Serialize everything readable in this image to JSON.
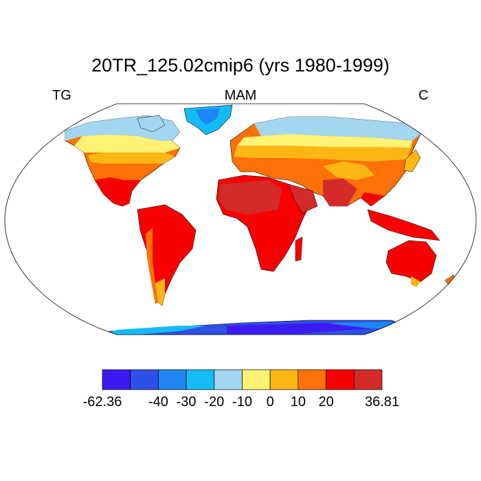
{
  "title": "20TR_125.02cmip6 (yrs 1980-1999)",
  "left_label": "TG",
  "center_label": "MAM",
  "right_label": "C",
  "colorbar": {
    "colors": [
      "#3c1bf2",
      "#2e50e6",
      "#1f86f4",
      "#13bcf7",
      "#a3d6f0",
      "#fff275",
      "#fdb714",
      "#fd7106",
      "#f90000",
      "#d42a2a"
    ],
    "ticks": [
      {
        "label": "-62.36",
        "index": 0
      },
      {
        "label": "-40",
        "index": 2
      },
      {
        "label": "-30",
        "index": 3
      },
      {
        "label": "-20",
        "index": 4
      },
      {
        "label": "-10",
        "index": 5
      },
      {
        "label": "0",
        "index": 6
      },
      {
        "label": "10",
        "index": 7
      },
      {
        "label": "20",
        "index": 8
      },
      {
        "label": "36.81",
        "index": 10
      }
    ]
  }
}
